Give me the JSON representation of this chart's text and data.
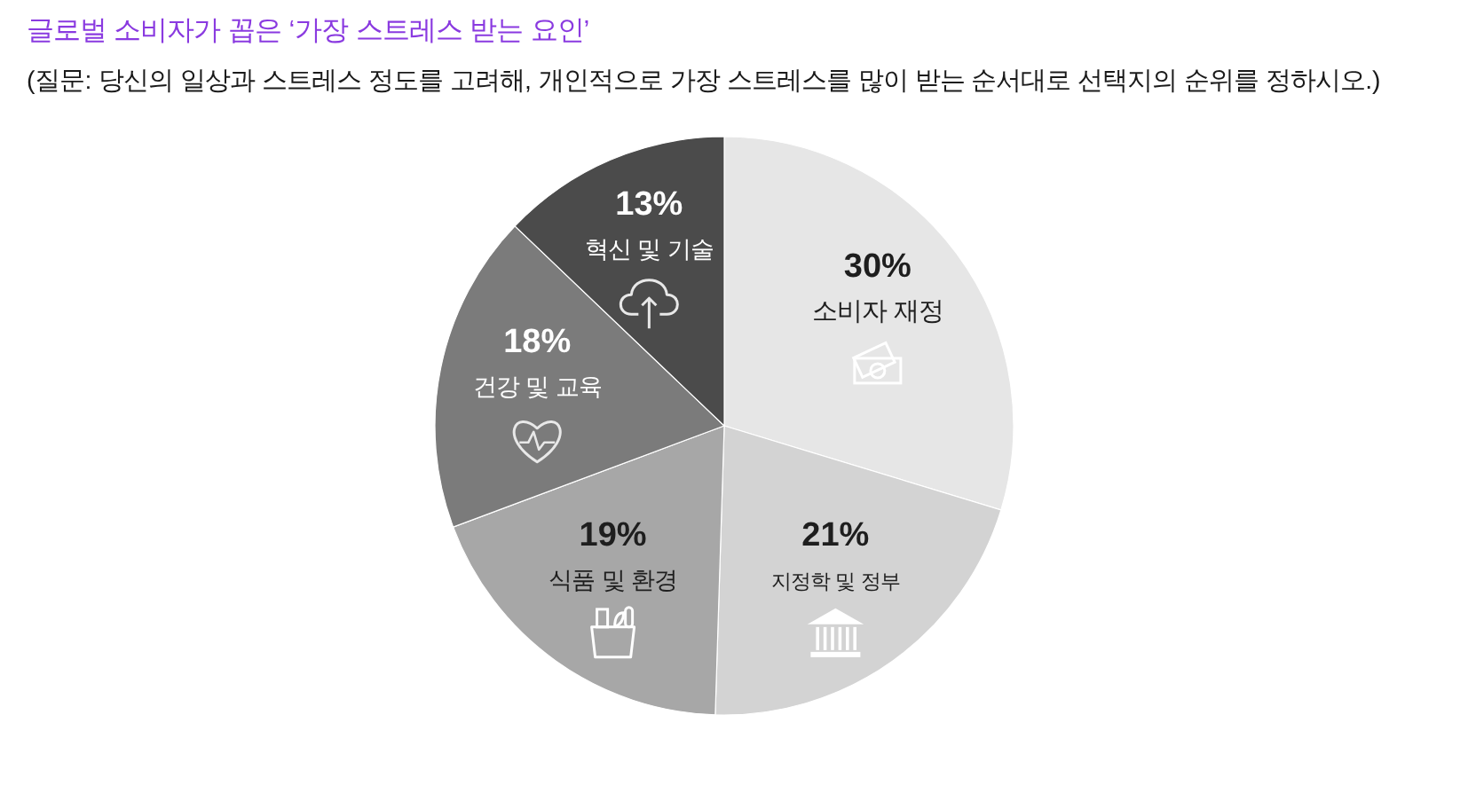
{
  "chart_data": {
    "type": "pie",
    "title": "글로벌 소비자가 꼽은 ‘가장 스트레스 받는 요인’",
    "subtitle": "(질문: 당신의 일상과 스트레스 정도를 고려해, 개인적으로 가장 스트레스를 많이 받는 순서대로 선택지의 순위를 정하시오.)",
    "categories": [
      "소비자 재정",
      "지정학 및 정부",
      "식품 및 환경",
      "건강 및 교육",
      "혁신 및 기술"
    ],
    "values": [
      30,
      21,
      19,
      18,
      13
    ],
    "value_labels": [
      "30%",
      "21%",
      "19%",
      "18%",
      "13%"
    ],
    "colors": [
      "#e6e6e6",
      "#d3d3d3",
      "#a7a7a7",
      "#7b7b7b",
      "#4b4b4b"
    ]
  }
}
